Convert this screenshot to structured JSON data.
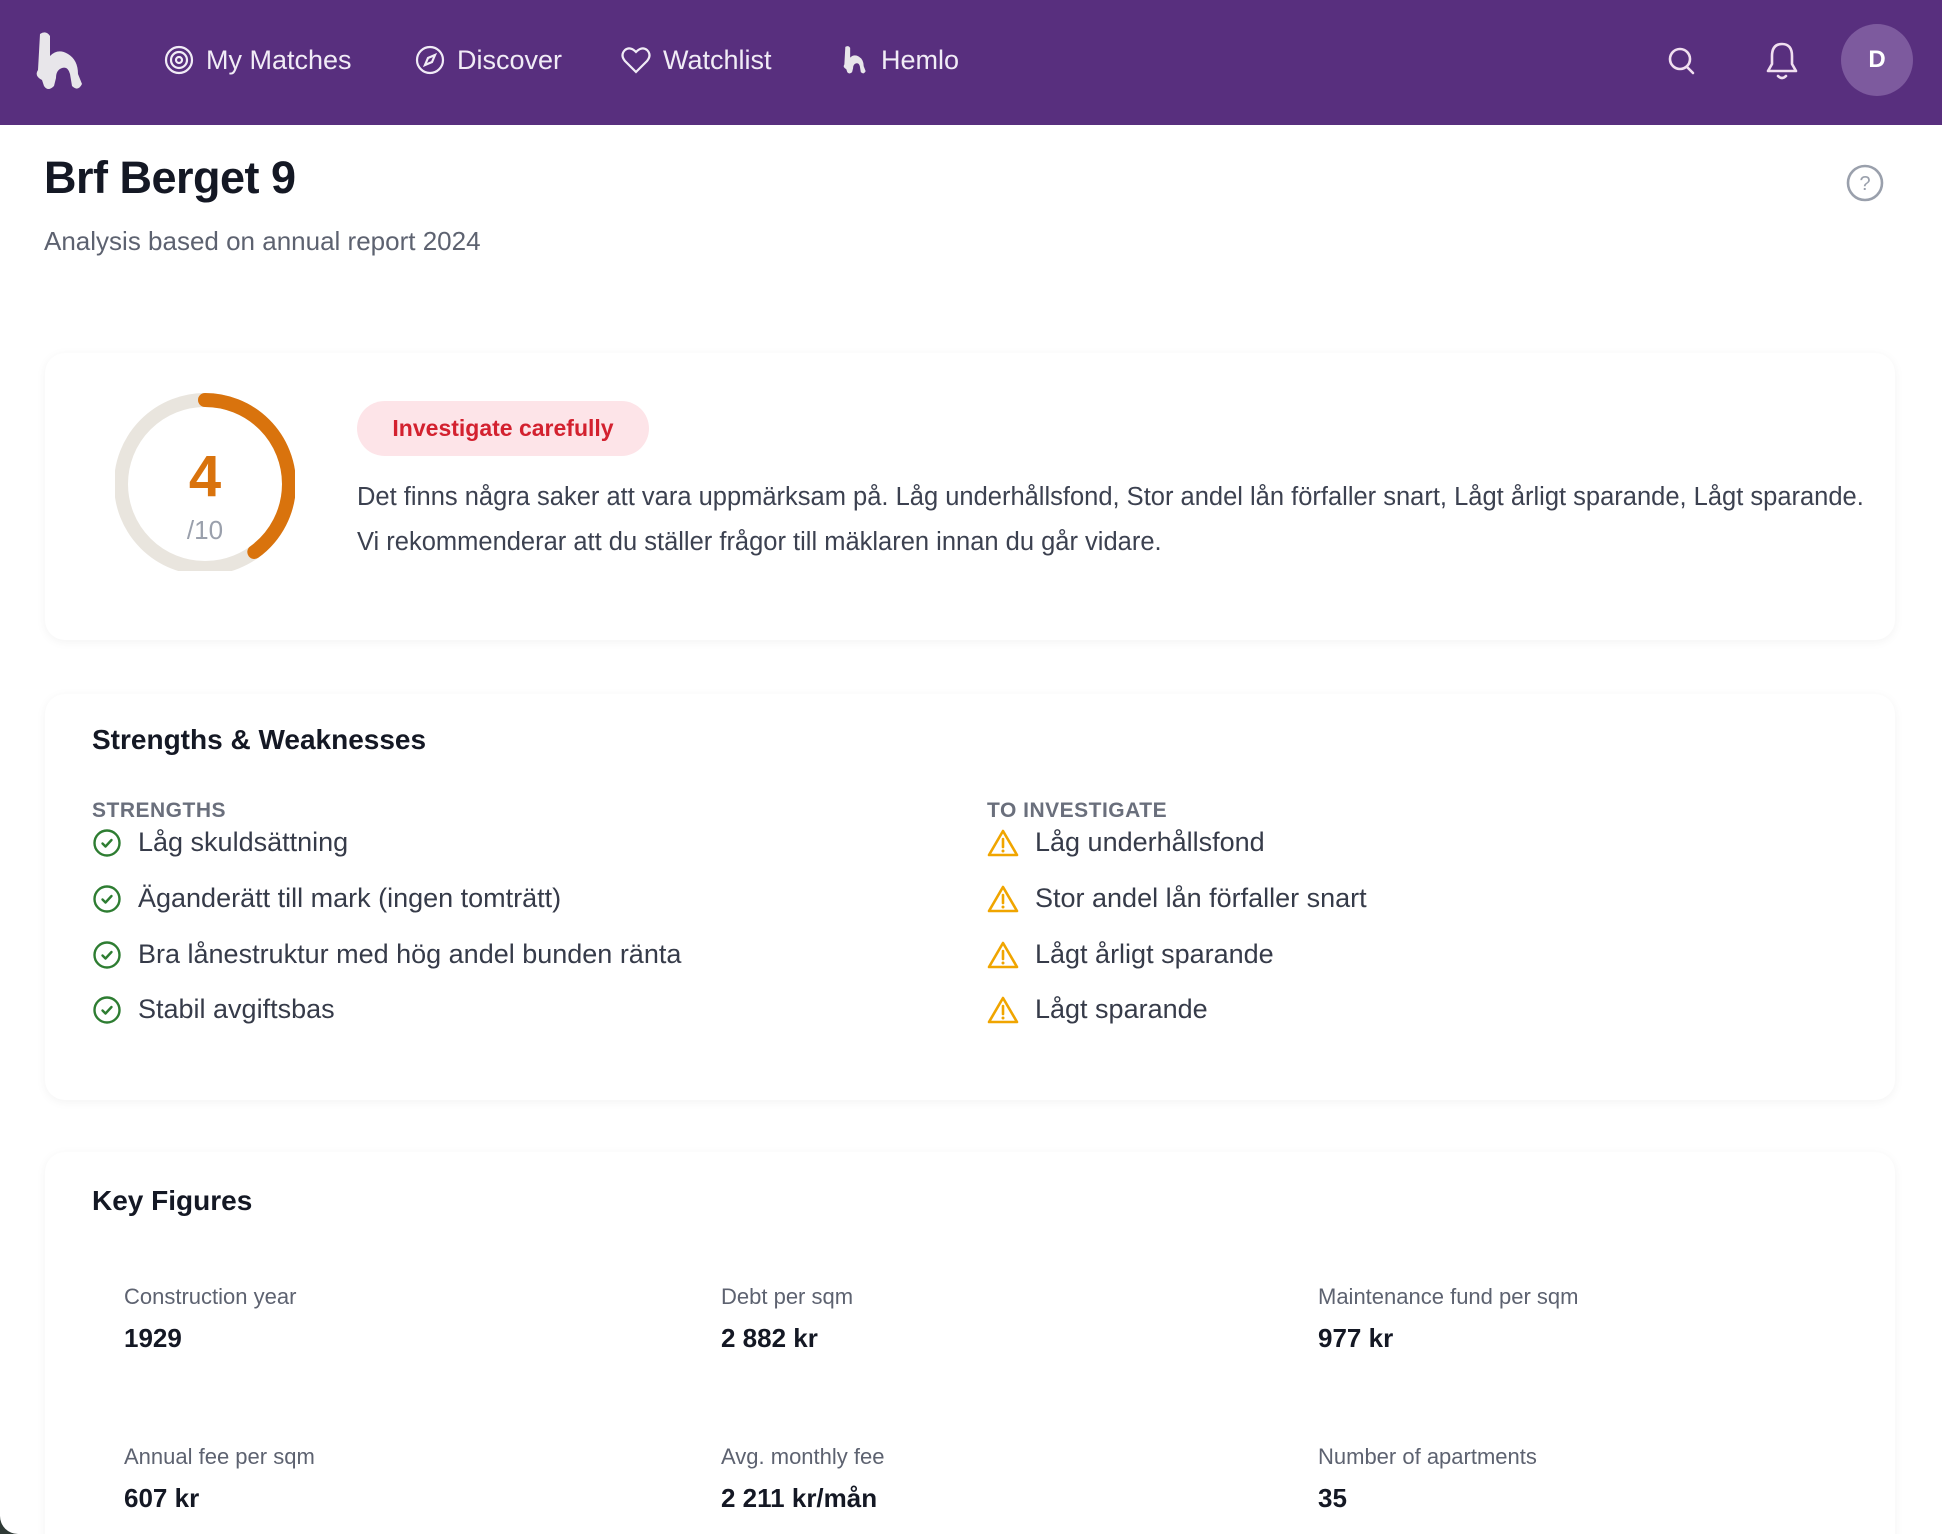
{
  "nav": {
    "items": [
      {
        "label": "My Matches",
        "icon": "target-icon"
      },
      {
        "label": "Discover",
        "icon": "compass-icon"
      },
      {
        "label": "Watchlist",
        "icon": "heart-icon"
      },
      {
        "label": "Hemlo",
        "icon": "hemlo-logo-icon"
      }
    ],
    "avatar_initial": "D"
  },
  "header": {
    "title": "Brf Berget 9",
    "subtitle": "Analysis based on annual report 2024"
  },
  "score": {
    "value": "4",
    "max_label": "/10",
    "fraction": 0.4,
    "badge": "Investigate carefully",
    "summary": "Det finns några saker att vara uppmärksam på. Låg underhållsfond, Stor andel lån förfaller snart, Lågt årligt sparande, Lågt sparande. Vi rekommenderar att du ställer frågor till mäklaren innan du går vidare.",
    "colors": {
      "arc": "#d9730d",
      "track": "#e9e5de",
      "badge_text": "#d3212f",
      "badge_bg": "#fde4e8"
    }
  },
  "strengths_weaknesses": {
    "title": "Strengths & Weaknesses",
    "strengths_heading": "STRENGTHS",
    "strengths": [
      "Låg skuldsättning",
      "Äganderätt till mark (ingen tomträtt)",
      "Bra lånestruktur med hög andel bunden ränta",
      "Stabil avgiftsbas"
    ],
    "investigate_heading": "TO INVESTIGATE",
    "investigate": [
      "Låg underhållsfond",
      "Stor andel lån förfaller snart",
      "Lågt årligt sparande",
      "Lågt sparande"
    ],
    "colors": {
      "strength": "#2e7d32",
      "warning": "#f0a500"
    }
  },
  "key_figures": {
    "title": "Key Figures",
    "items": [
      {
        "label": "Construction year",
        "value": "1929"
      },
      {
        "label": "Debt per sqm",
        "value": "2 882 kr"
      },
      {
        "label": "Maintenance fund per sqm",
        "value": "977 kr"
      },
      {
        "label": "Annual fee per sqm",
        "value": "607 kr"
      },
      {
        "label": "Avg. monthly fee",
        "value": "2 211 kr/mån"
      },
      {
        "label": "Number of apartments",
        "value": "35"
      }
    ]
  }
}
